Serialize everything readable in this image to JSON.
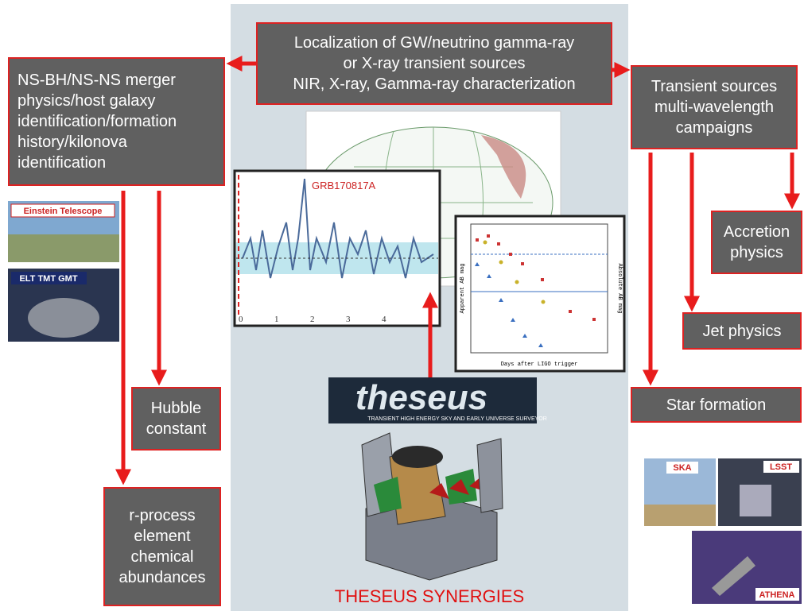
{
  "title": "THESEUS SYNERGIES",
  "center_box": {
    "lines": [
      "Localization of GW/neutrino gamma-ray",
      "or X-ray transient sources",
      "NIR, X-ray, Gamma-ray characterization"
    ]
  },
  "left_box": {
    "lines": [
      "NS-BH/NS-NS merger",
      "physics/host galaxy",
      "identification/formation",
      "history/kilonova",
      "identification"
    ]
  },
  "right_box": {
    "lines": [
      "Transient sources",
      "multi-wavelength",
      "campaigns"
    ]
  },
  "outcomes": {
    "accretion": [
      "Accretion",
      "physics"
    ],
    "jet": [
      "Jet physics"
    ],
    "star_formation": [
      "Star formation"
    ],
    "hubble": [
      "Hubble",
      "constant"
    ],
    "r_process": [
      "r-process",
      "element",
      "chemical",
      "abundances"
    ]
  },
  "facilities": {
    "einstein": "Einstein Telescope",
    "elt": "ELT TMT GMT",
    "ska": "SKA",
    "lsst": "LSST",
    "athena": "ATHENA"
  },
  "grb_plot": {
    "label": "GRB170817A",
    "xticks": [
      "0",
      "1",
      "2",
      "3",
      "4"
    ]
  },
  "lightcurve": {
    "xlabel": "Days after LIGO trigger",
    "ylabel": "Apparent AB mag",
    "y2label": "Absolute AB mag"
  },
  "logo": {
    "name": "theseus",
    "tagline": "TRANSIENT HIGH ENERGY SKY AND EARLY UNIVERSE SURVEYOR"
  }
}
